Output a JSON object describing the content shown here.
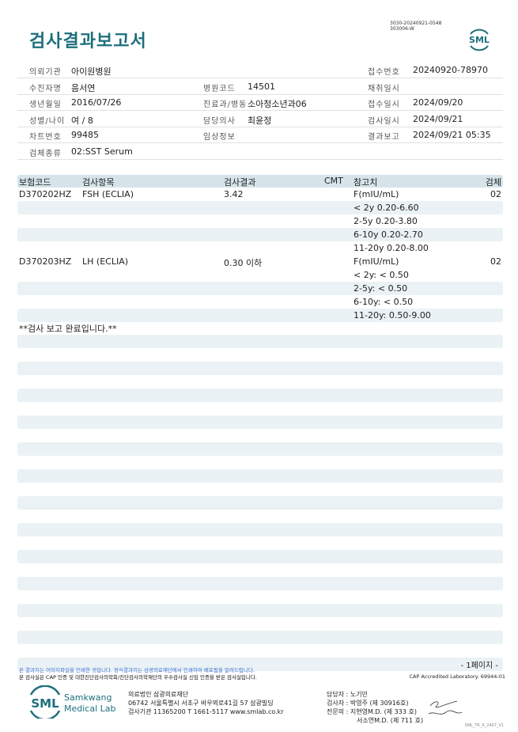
{
  "header": {
    "title": "검사결과보고서",
    "doc_id_line1": "3030-20240921-0548",
    "doc_id_line2": "303006-W",
    "logo_text": "SML",
    "brand_color": "#1d6f7c"
  },
  "info": {
    "rows": [
      [
        {
          "label": "의뢰기관",
          "value": "아이원병원"
        },
        {
          "label": "",
          "value": ""
        },
        {
          "label": "접수번호",
          "value": "20240920-78970"
        }
      ],
      [
        {
          "label": "수진자명",
          "value": "음서연"
        },
        {
          "label": "병원코드",
          "value": "14501"
        },
        {
          "label": "채취일시",
          "value": ""
        }
      ],
      [
        {
          "label": "생년월일",
          "value": "2016/07/26"
        },
        {
          "label": "진료과/병동",
          "value": "소아청소년과06"
        },
        {
          "label": "접수일시",
          "value": "2024/09/20"
        }
      ],
      [
        {
          "label": "성별/나이",
          "value": "여 / 8"
        },
        {
          "label": "담당의사",
          "value": "최윤정"
        },
        {
          "label": "검사일시",
          "value": "2024/09/21"
        }
      ],
      [
        {
          "label": "차트번호",
          "value": "99485"
        },
        {
          "label": "임상정보",
          "value": ""
        },
        {
          "label": "결과보고",
          "value": "2024/09/21 05:35"
        }
      ],
      [
        {
          "label": "검체종류",
          "value": "02:SST Serum"
        },
        {
          "label": "",
          "value": ""
        },
        {
          "label": "",
          "value": ""
        }
      ]
    ]
  },
  "results": {
    "columns": {
      "code": "보험코드",
      "item": "검사항목",
      "result": "검사결과",
      "cmt": "CMT",
      "ref": "참고치",
      "specimen": "검체"
    },
    "rows": [
      {
        "code": "D370202HZ",
        "item": "FSH (ECLIA)",
        "result": "3.42",
        "ref": "F(mIU/mL)",
        "specimen": "02"
      },
      {
        "code": "",
        "item": "",
        "result": "",
        "ref": "< 2y 0.20-6.60",
        "specimen": ""
      },
      {
        "code": "",
        "item": "",
        "result": "",
        "ref": "2-5y 0.20-3.80",
        "specimen": ""
      },
      {
        "code": "",
        "item": "",
        "result": "",
        "ref": "6-10y 0.20-2.70",
        "specimen": ""
      },
      {
        "code": "",
        "item": "",
        "result": "",
        "ref": "11-20y 0.20-8.00",
        "specimen": ""
      },
      {
        "code": "D370203HZ",
        "item": "LH (ECLIA)",
        "result": "0.30 이하",
        "ref": "F(mIU/mL)",
        "specimen": "02"
      },
      {
        "code": "",
        "item": "",
        "result": "",
        "ref": "< 2y: < 0.50",
        "specimen": ""
      },
      {
        "code": "",
        "item": "",
        "result": "",
        "ref": "2-5y: < 0.50",
        "specimen": ""
      },
      {
        "code": "",
        "item": "",
        "result": "",
        "ref": "6-10y: < 0.50",
        "specimen": ""
      },
      {
        "code": "",
        "item": "",
        "result": "",
        "ref": "11-20y: 0.50-9.00",
        "specimen": ""
      }
    ],
    "completion_note": "**검사 보고 완료입니다.**"
  },
  "footer": {
    "page": "- 1페이지 -",
    "notice1": "본 결과지는 이미지파일을 인쇄한 것입니다. 정식결과지는 삼광의료재단에서 인쇄하여 배포됨을 알려드립니다.",
    "notice2": "본 검사실은 CAP 인증 및 대한진단검사의학회/진단검사의학재단의 우수검사실 신임 인증을 받은 검사실입니다.",
    "cap": "CAP Accredited Laboratory. 69944-01",
    "logo_text": "SML",
    "brand_line1": "Samkwang",
    "brand_line2": "Medical Lab",
    "addr1": "의료법인 삼광의료재단",
    "addr2": "06742 서울특별시 서초구 바우뫼로41길 57 삼광빌딩",
    "addr3": "검사기관 11365200 T 1661-5117 www.smlab.co.kr",
    "staff1": "담당자 : 노기민",
    "staff2": "검사자 : 박영주 (제 30916호)",
    "staff3": "전문의 : 지현영M.D. (제 333 호)",
    "staff4": "서소연M.D. (제 711 호)",
    "version": "SML_TR_A_2407_V1"
  }
}
